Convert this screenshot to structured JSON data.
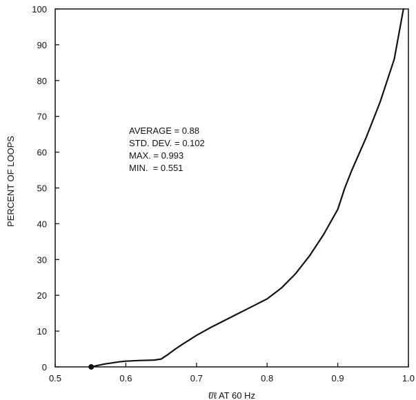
{
  "chart_data": {
    "type": "line",
    "title": "",
    "xlabel": "ℓ̄/ℓ AT 60 Hz",
    "ylabel": "PERCENT OF LOOPS",
    "xlim": [
      0.5,
      1.0
    ],
    "ylim": [
      0,
      100
    ],
    "x_ticks": [
      "0.5",
      "0.6",
      "0.7",
      "0.8",
      "0.9",
      "1.0"
    ],
    "y_ticks": [
      "0",
      "10",
      "20",
      "30",
      "40",
      "50",
      "60",
      "70",
      "80",
      "90",
      "100"
    ],
    "grid": false,
    "annotations": [
      "AVERAGE = 0.88",
      "STD. DEV. = 0.102",
      "MAX. = 0.993",
      "MIN.  = 0.551"
    ],
    "series": [
      {
        "x": [
          0.551,
          0.56,
          0.57,
          0.58,
          0.59,
          0.6,
          0.62,
          0.64,
          0.65,
          0.66,
          0.67,
          0.68,
          0.7,
          0.72,
          0.74,
          0.76,
          0.78,
          0.8,
          0.82,
          0.84,
          0.86,
          0.88,
          0.9,
          0.91,
          0.92,
          0.94,
          0.96,
          0.98,
          0.993
        ],
        "y": [
          0,
          0.4,
          0.8,
          1.1,
          1.4,
          1.6,
          1.8,
          1.9,
          2.2,
          3.5,
          5.0,
          6.3,
          8.8,
          11.0,
          13.0,
          15.0,
          17.0,
          19.0,
          22.0,
          26.0,
          31.0,
          37.0,
          44.0,
          50.0,
          55.0,
          64.0,
          74.0,
          86.0,
          100.0
        ]
      }
    ],
    "min_marker": {
      "x": 0.551,
      "y": 0
    }
  }
}
